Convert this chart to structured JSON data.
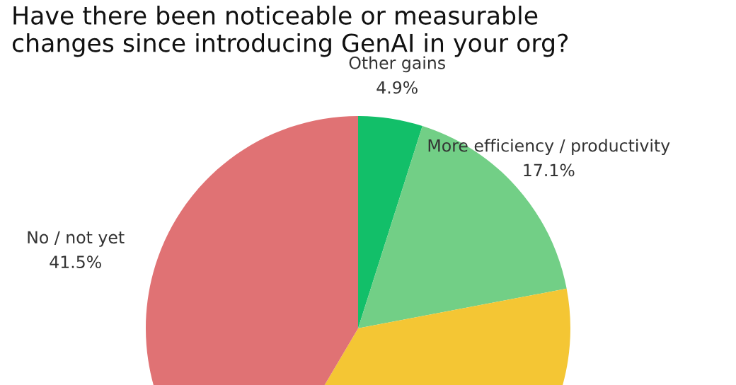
{
  "chart_data": {
    "type": "pie",
    "title": "Have there been noticeable or measurable\nchanges since introducing GenAI in your org?",
    "categories": [
      "Other gains",
      "More efficiency / productivity",
      null,
      "No / not yet"
    ],
    "values": [
      4.9,
      17.1,
      36.5,
      41.5
    ],
    "value_labels": [
      "4.9%",
      "17.1%",
      null,
      "41.5%"
    ],
    "colors": [
      "#12bf69",
      "#72cf86",
      "#f4c634",
      "#e07274"
    ]
  }
}
